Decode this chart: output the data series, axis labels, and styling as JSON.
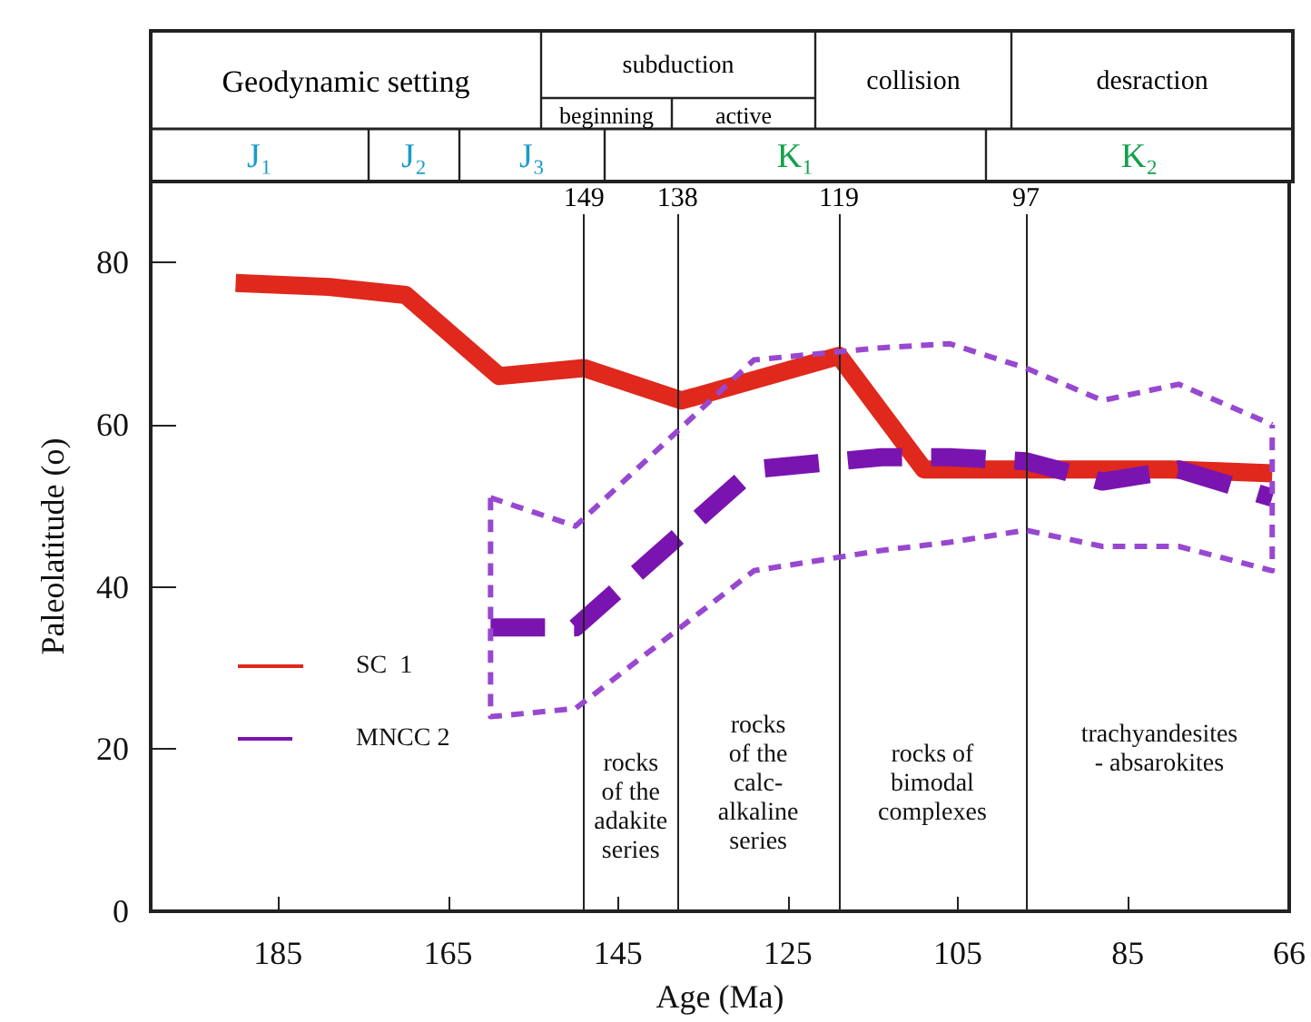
{
  "chart_data": {
    "type": "line",
    "xlabel": "Age (Ma)",
    "ylabel": "Paleolatitude (o)",
    "xlim": [
      200,
      66
    ],
    "xticks": [
      185,
      165,
      145,
      125,
      105,
      85,
      66
    ],
    "ylim": [
      0,
      90
    ],
    "yticks": [
      0,
      20,
      40,
      60,
      80
    ],
    "grid": false,
    "legend": "left",
    "marker": "none",
    "series": [
      {
        "name": "SC  1",
        "color": "#e0281c",
        "line_style": "solid",
        "x": [
          190,
          179,
          170,
          159,
          149,
          137.5,
          119,
          109,
          80,
          68
        ],
        "values": [
          77.5,
          77,
          76,
          66,
          67,
          63,
          68.5,
          54.5,
          54.5,
          54
        ]
      },
      {
        "name": "MNCC 2",
        "color": "#7a14b0",
        "line_style": "dashed",
        "x": [
          160,
          150,
          129,
          114,
          106,
          97,
          88,
          79,
          68
        ],
        "values": [
          35,
          35,
          54.5,
          56,
          56,
          55.5,
          53,
          54.5,
          51
        ]
      },
      {
        "color": "#9848d0",
        "line_style": "dotted",
        "x": [
          160,
          150,
          129,
          114,
          106,
          97,
          88,
          79,
          68
        ],
        "values": [
          51,
          47.5,
          68,
          69.5,
          70,
          67,
          63,
          65,
          60
        ]
      },
      {
        "color": "#9848d0",
        "line_style": "dotted",
        "x": [
          160,
          160,
          150,
          129,
          114,
          106,
          97,
          88,
          79,
          68,
          68
        ],
        "values": [
          51,
          24,
          25,
          42,
          44.5,
          45.5,
          47,
          45,
          45,
          42,
          60
        ]
      }
    ],
    "ref_lines": [
      {
        "axis": "x",
        "value": 149,
        "label": "149"
      },
      {
        "axis": "x",
        "value": 138,
        "label": "138"
      },
      {
        "axis": "x",
        "value": 119,
        "label": "119"
      },
      {
        "axis": "x",
        "value": 97,
        "label": "97"
      }
    ],
    "annotations": [
      "Geodynamic setting",
      "subduction",
      "beginning",
      "active",
      "collision",
      "desraction",
      "J₁",
      "J₂",
      "J₃",
      "K₁",
      "K₂",
      "rocks\nof the\nadakite\nseries",
      "rocks\nof the\ncalc-\nalkaline\nseries",
      "rocks of\nbimodal\ncomplexes",
      "trachyandesites\n- absarokites"
    ]
  }
}
